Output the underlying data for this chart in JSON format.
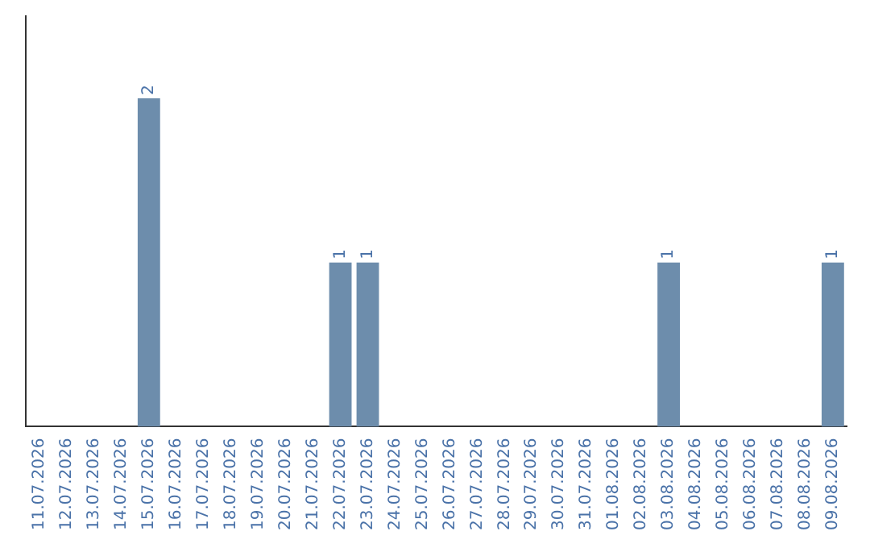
{
  "chart_data": {
    "type": "bar",
    "categories": [
      "11.07.2026",
      "12.07.2026",
      "13.07.2026",
      "14.07.2026",
      "15.07.2026",
      "16.07.2026",
      "17.07.2026",
      "18.07.2026",
      "19.07.2026",
      "20.07.2026",
      "21.07.2026",
      "22.07.2026",
      "23.07.2026",
      "24.07.2026",
      "25.07.2026",
      "26.07.2026",
      "27.07.2026",
      "28.07.2026",
      "29.07.2026",
      "30.07.2026",
      "31.07.2026",
      "01.08.2026",
      "02.08.2026",
      "03.08.2026",
      "04.08.2026",
      "05.08.2026",
      "06.08.2026",
      "07.08.2026",
      "08.08.2026",
      "09.08.2026"
    ],
    "values": [
      0,
      0,
      0,
      0,
      2,
      0,
      0,
      0,
      0,
      0,
      0,
      1,
      1,
      0,
      0,
      0,
      0,
      0,
      0,
      0,
      0,
      0,
      0,
      1,
      0,
      0,
      0,
      0,
      0,
      1
    ],
    "color": "#6d8dac",
    "value_labels": [
      null,
      null,
      null,
      null,
      "2",
      null,
      null,
      null,
      null,
      null,
      null,
      "1",
      "1",
      null,
      null,
      null,
      null,
      null,
      null,
      null,
      null,
      null,
      null,
      "1",
      null,
      null,
      null,
      null,
      null,
      "1"
    ],
    "grid": false,
    "legend": false
  }
}
